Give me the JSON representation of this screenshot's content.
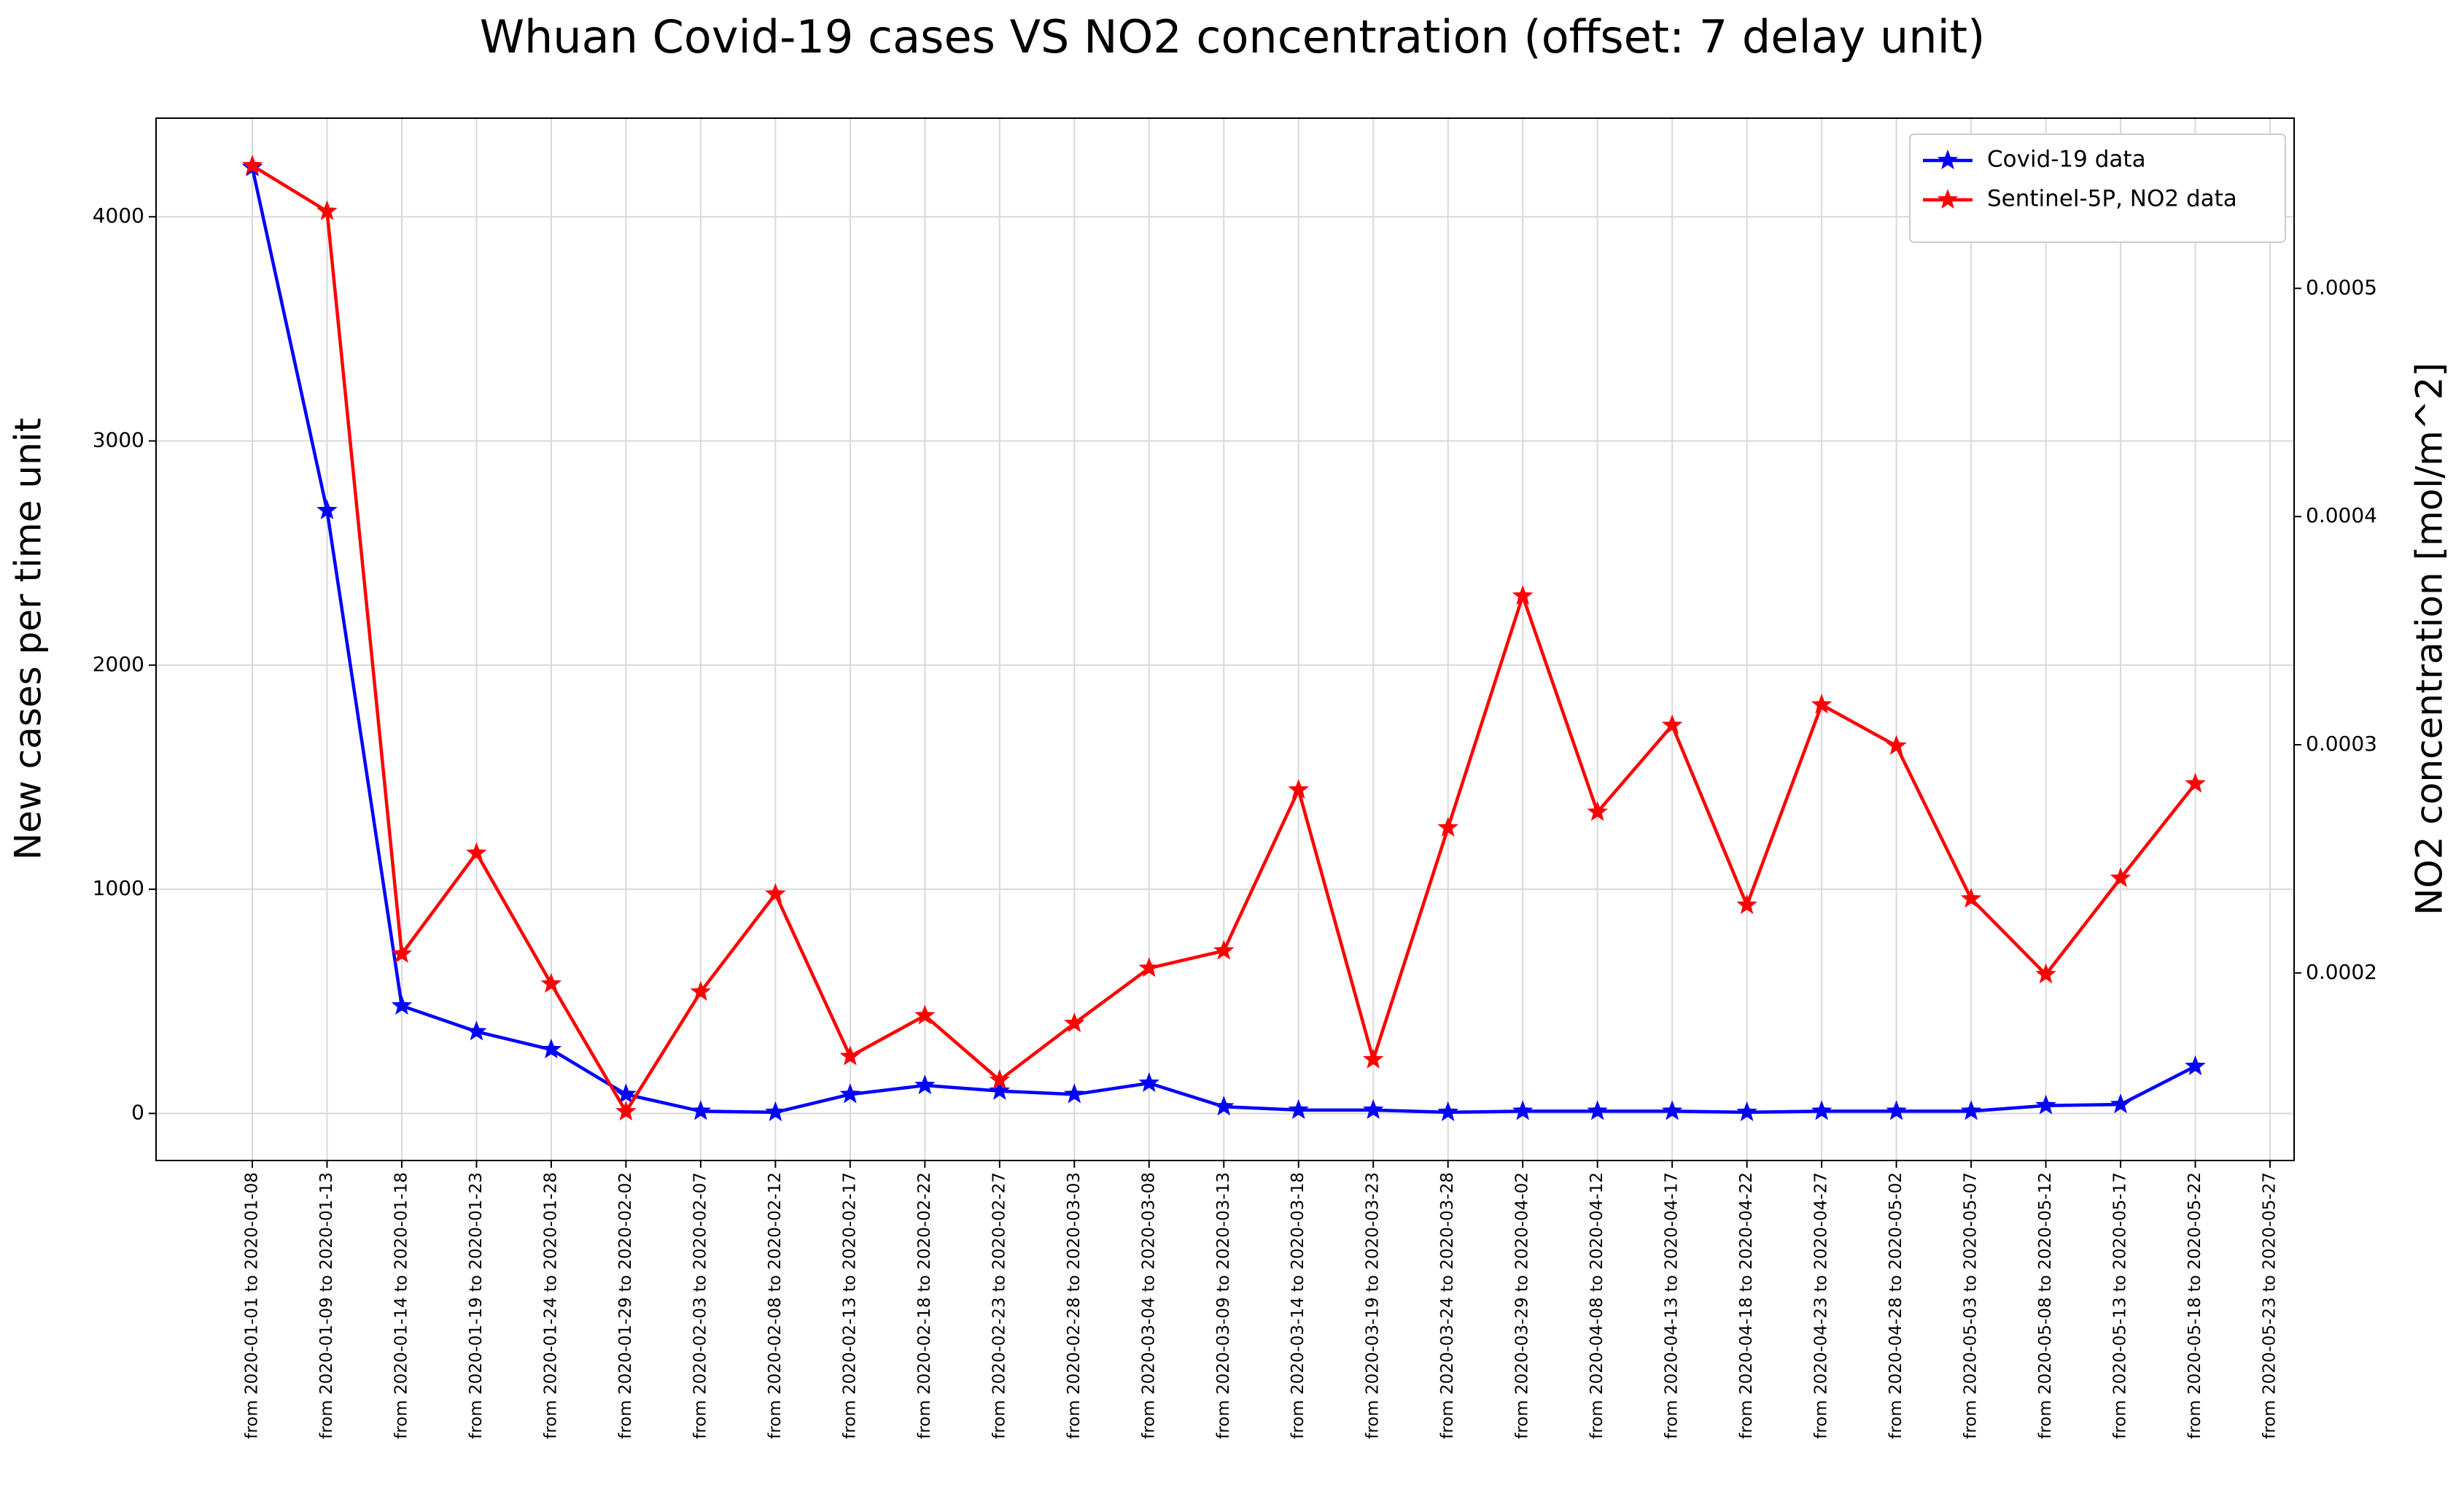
{
  "chart_data": {
    "type": "line",
    "title": "Whuan Covid-19 cases VS NO2 concentration (offset: 7 delay unit)",
    "y_label": "New cases per time unit",
    "y2_label": "NO2 concentration [mol/m^2]",
    "categories": [
      "from 2020-01-01 to 2020-01-08",
      "from 2020-01-09 to 2020-01-13",
      "from 2020-01-14 to 2020-01-18",
      "from 2020-01-19 to 2020-01-23",
      "from 2020-01-24 to 2020-01-28",
      "from 2020-01-29 to 2020-02-02",
      "from 2020-02-03 to 2020-02-07",
      "from 2020-02-08 to 2020-02-12",
      "from 2020-02-13 to 2020-02-17",
      "from 2020-02-18 to 2020-02-22",
      "from 2020-02-23 to 2020-02-27",
      "from 2020-02-28 to 2020-03-03",
      "from 2020-03-04 to 2020-03-08",
      "from 2020-03-09 to 2020-03-13",
      "from 2020-03-14 to 2020-03-18",
      "from 2020-03-19 to 2020-03-23",
      "from 2020-03-24 to 2020-03-28",
      "from 2020-03-29 to 2020-04-02",
      "from 2020-04-08 to 2020-04-12",
      "from 2020-04-13 to 2020-04-17",
      "from 2020-04-18 to 2020-04-22",
      "from 2020-04-23 to 2020-04-27",
      "from 2020-04-28 to 2020-05-02",
      "from 2020-05-03 to 2020-05-07",
      "from 2020-05-08 to 2020-05-12",
      "from 2020-05-13 to 2020-05-17",
      "from 2020-05-18 to 2020-05-22",
      "from 2020-05-23 to 2020-05-27"
    ],
    "series": [
      {
        "name": "Covid-19 data",
        "color": "#0000ff",
        "values": [
          4220,
          2690,
          480,
          365,
          285,
          85,
          10,
          5,
          85,
          125,
          100,
          85,
          135,
          30,
          15,
          15,
          5,
          10,
          10,
          10,
          5,
          10,
          10,
          10,
          35,
          40,
          210,
          null
        ]
      },
      {
        "name": "Sentinel-5P, NO2 data",
        "color": "#ff0000",
        "axis": "y2",
        "values": [
          0.0005538,
          0.0005338,
          0.0002083,
          0.0002525,
          0.0001952,
          0.0001392,
          0.0001917,
          0.0002346,
          0.0001634,
          0.0001813,
          0.000153,
          0.0001779,
          0.0002021,
          0.0002097,
          0.0002802,
          0.000162,
          0.0002636,
          0.0003652,
          0.0002705,
          0.0003085,
          0.0002297,
          0.0003175,
          0.0002995,
          0.0002325,
          0.0001993,
          0.0002415,
          0.0002829,
          null
        ]
      }
    ],
    "ylim": [
      -210,
      4440
    ],
    "yticks": [
      0,
      1000,
      2000,
      3000,
      4000
    ],
    "y2lim": [
      0.0001178,
      0.0005746
    ],
    "y2ticks": [
      0.0002,
      0.0003,
      0.0004,
      0.0005
    ],
    "grid": true,
    "legend": "upper right"
  }
}
